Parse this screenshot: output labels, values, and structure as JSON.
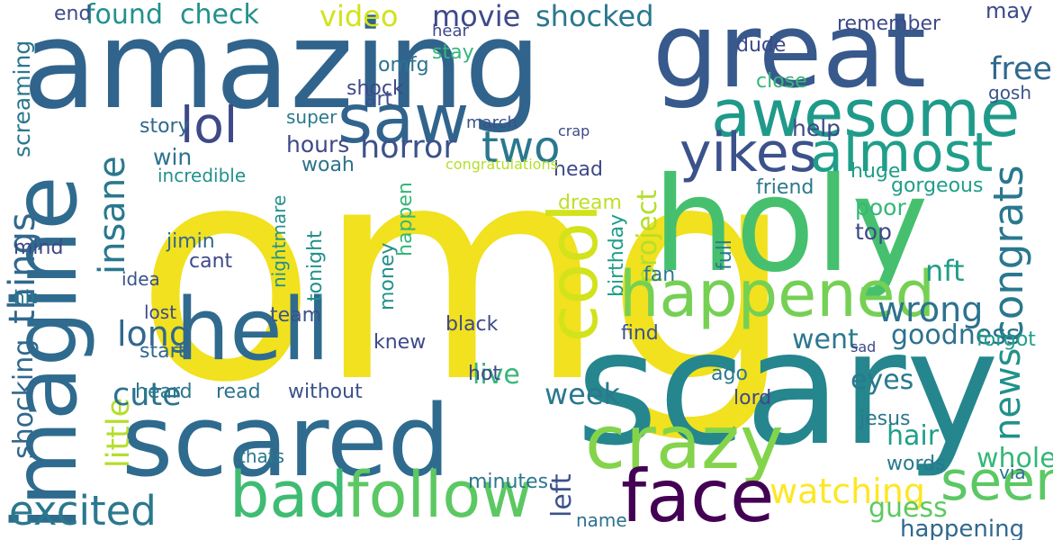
{
  "words": [
    {
      "text": "omg",
      "color": "#f1e11f"
    },
    {
      "text": "amazing",
      "color": "#31648c"
    },
    {
      "text": "scary",
      "color": "#25868e"
    },
    {
      "text": "great",
      "color": "#38598c"
    },
    {
      "text": "holy",
      "color": "#46c06f"
    },
    {
      "text": "scared",
      "color": "#2f6b8e"
    },
    {
      "text": "imagine",
      "color": "#2f6b8e"
    },
    {
      "text": "awesome",
      "color": "#1f9a8a"
    },
    {
      "text": "hell",
      "color": "#2f6b8e"
    },
    {
      "text": "crazy",
      "color": "#84d44b"
    },
    {
      "text": "face",
      "color": "#440154"
    },
    {
      "text": "saw",
      "color": "#31648c"
    },
    {
      "text": "cool",
      "color": "#d2e21b"
    },
    {
      "text": "happened",
      "color": "#75d054"
    },
    {
      "text": "follow",
      "color": "#5cc863"
    },
    {
      "text": "bad",
      "color": "#3fbc73"
    },
    {
      "text": "seen",
      "color": "#5cc863"
    },
    {
      "text": "yikes",
      "color": "#3b528b"
    },
    {
      "text": "lol",
      "color": "#3e4989"
    },
    {
      "text": "almost",
      "color": "#1f9e89"
    },
    {
      "text": "excited",
      "color": "#2a788e"
    },
    {
      "text": "two",
      "color": "#2a788e"
    },
    {
      "text": "congrats",
      "color": "#2a788e"
    },
    {
      "text": "little",
      "color": "#b5de2b"
    },
    {
      "text": "insane",
      "color": "#2a788e"
    },
    {
      "text": "wrong",
      "color": "#2c728e"
    },
    {
      "text": "watching",
      "color": "#fde725"
    },
    {
      "text": "news",
      "color": "#21918c"
    },
    {
      "text": "things",
      "color": "#31688e"
    },
    {
      "text": "video",
      "color": "#d2e21b"
    },
    {
      "text": "movie",
      "color": "#3e4989"
    },
    {
      "text": "shocked",
      "color": "#2a788e"
    },
    {
      "text": "found",
      "color": "#21918c"
    },
    {
      "text": "check",
      "color": "#21918c"
    },
    {
      "text": "horror",
      "color": "#3b528b"
    },
    {
      "text": "long",
      "color": "#31688e"
    },
    {
      "text": "cute",
      "color": "#2c728e"
    },
    {
      "text": "free",
      "color": "#31688e"
    },
    {
      "text": "project",
      "color": "#b5de2b"
    },
    {
      "text": "shocking",
      "color": "#31688e"
    },
    {
      "text": "screaming",
      "color": "#2a788e"
    },
    {
      "text": "week",
      "color": "#2a788e"
    },
    {
      "text": "left",
      "color": "#3b528b"
    },
    {
      "text": "whole",
      "color": "#35b779"
    },
    {
      "text": "hair",
      "color": "#1f9e89"
    },
    {
      "text": "goodness",
      "color": "#2c728e"
    },
    {
      "text": "live",
      "color": "#35b779"
    },
    {
      "text": "happening",
      "color": "#31688e"
    },
    {
      "text": "nft",
      "color": "#1f9e89"
    },
    {
      "text": "went",
      "color": "#2a788e"
    },
    {
      "text": "guess",
      "color": "#5ec962"
    },
    {
      "text": "birthday",
      "color": "#1f9e89"
    },
    {
      "text": "without",
      "color": "#3b528b"
    },
    {
      "text": "hours",
      "color": "#3e4989"
    },
    {
      "text": "win",
      "color": "#2c728e"
    },
    {
      "text": "forgot",
      "color": "#1f9e89"
    },
    {
      "text": "eyes",
      "color": "#2a788e"
    },
    {
      "text": "read",
      "color": "#2c728e"
    },
    {
      "text": "help",
      "color": "#3e4989"
    },
    {
      "text": "friend",
      "color": "#2a788e"
    },
    {
      "text": "poor",
      "color": "#35b779"
    },
    {
      "text": "jesus",
      "color": "#2a788e"
    },
    {
      "text": "minutes",
      "color": "#2a788e"
    },
    {
      "text": "tonight",
      "color": "#21918c"
    },
    {
      "text": "mind",
      "color": "#3e4989"
    },
    {
      "text": "woah",
      "color": "#2c728e"
    },
    {
      "text": "omfg",
      "color": "#2c728e"
    },
    {
      "text": "stay",
      "color": "#35b779"
    },
    {
      "text": "shock",
      "color": "#3e4989"
    },
    {
      "text": "story",
      "color": "#31688e"
    },
    {
      "text": "super",
      "color": "#2a788e"
    },
    {
      "text": "black",
      "color": "#3e4989"
    },
    {
      "text": "knew",
      "color": "#3e4989"
    },
    {
      "text": "hot",
      "color": "#3e4989"
    },
    {
      "text": "heard",
      "color": "#2a788e"
    },
    {
      "text": "start",
      "color": "#31688e"
    },
    {
      "text": "team",
      "color": "#3b528b"
    },
    {
      "text": "lost",
      "color": "#3e4989"
    },
    {
      "text": "idea",
      "color": "#3b528b"
    },
    {
      "text": "jimin",
      "color": "#31688e"
    },
    {
      "text": "fan",
      "color": "#2a788e"
    },
    {
      "text": "find",
      "color": "#3b528b"
    },
    {
      "text": "top",
      "color": "#3e4989"
    },
    {
      "text": "art",
      "color": "#3b528b"
    },
    {
      "text": "hear",
      "color": "#3e4989"
    },
    {
      "text": "may",
      "color": "#3e4989"
    },
    {
      "text": "remember",
      "color": "#3e4989"
    },
    {
      "text": "dude",
      "color": "#3e4989"
    },
    {
      "text": "gosh",
      "color": "#3b528b"
    },
    {
      "text": "gorgeous",
      "color": "#1f9e89"
    },
    {
      "text": "words",
      "color": "#2a788e"
    },
    {
      "text": "via",
      "color": "#2c728e"
    },
    {
      "text": "ago",
      "color": "#2a788e"
    },
    {
      "text": "lord",
      "color": "#3e4989"
    },
    {
      "text": "head",
      "color": "#3e4989"
    },
    {
      "text": "dream",
      "color": "#bddf26"
    },
    {
      "text": "happen",
      "color": "#35b779"
    },
    {
      "text": "money",
      "color": "#21918c"
    },
    {
      "text": "nightmare",
      "color": "#21918c"
    },
    {
      "text": "cant",
      "color": "#3e4989"
    },
    {
      "text": "incredible",
      "color": "#21918c"
    },
    {
      "text": "congratulations",
      "color": "#b5de2b"
    },
    {
      "text": "march",
      "color": "#3b528b"
    },
    {
      "text": "close",
      "color": "#35b779"
    },
    {
      "text": "huge",
      "color": "#1f9e89"
    },
    {
      "text": "name",
      "color": "#2c728e"
    },
    {
      "text": "thats",
      "color": "#2a788e"
    },
    {
      "text": "hit",
      "color": "#2a788e"
    },
    {
      "text": "sad",
      "color": "#3e4989"
    },
    {
      "text": "full",
      "color": "#2a788e"
    },
    {
      "text": "end",
      "color": "#3e4989"
    },
    {
      "text": "crap",
      "color": "#3e4989"
    }
  ]
}
